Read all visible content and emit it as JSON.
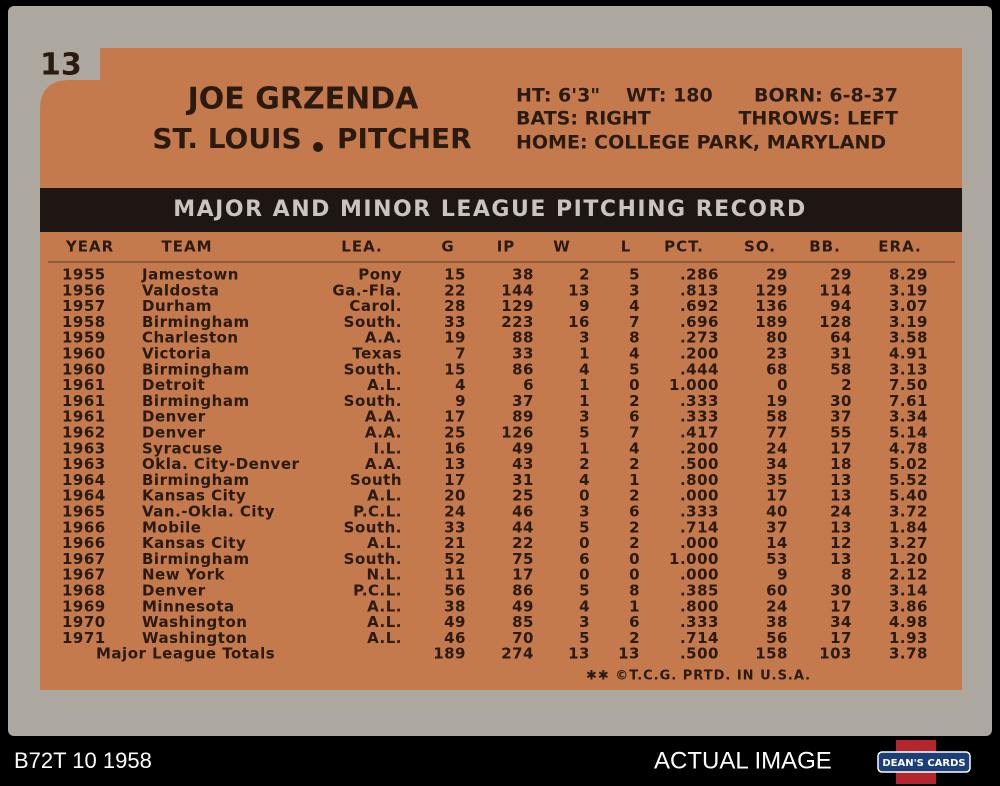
{
  "card_number": "13",
  "player": {
    "name": "JOE GRZENDA",
    "team": "ST. LOUIS",
    "position": "PITCHER"
  },
  "bio": {
    "height": "HT: 6'3\"",
    "weight": "WT: 180",
    "born": "BORN: 6-8-37",
    "bats": "BATS: RIGHT",
    "throws": "THROWS: LEFT",
    "home": "HOME: COLLEGE PARK, MARYLAND"
  },
  "table": {
    "title": "MAJOR AND MINOR LEAGUE PITCHING RECORD",
    "headers": [
      "YEAR",
      "TEAM",
      "LEA.",
      "G",
      "IP",
      "W",
      "L",
      "PCT.",
      "SO.",
      "BB.",
      "ERA."
    ],
    "rows": [
      [
        "1955",
        "Jamestown",
        "Pony",
        "15",
        "38",
        "2",
        "5",
        ".286",
        "29",
        "29",
        "8.29"
      ],
      [
        "1956",
        "Valdosta",
        "Ga.-Fla.",
        "22",
        "144",
        "13",
        "3",
        ".813",
        "129",
        "114",
        "3.19"
      ],
      [
        "1957",
        "Durham",
        "Carol.",
        "28",
        "129",
        "9",
        "4",
        ".692",
        "136",
        "94",
        "3.07"
      ],
      [
        "1958",
        "Birmingham",
        "South.",
        "33",
        "223",
        "16",
        "7",
        ".696",
        "189",
        "128",
        "3.19"
      ],
      [
        "1959",
        "Charleston",
        "A.A.",
        "19",
        "88",
        "3",
        "8",
        ".273",
        "80",
        "64",
        "3.58"
      ],
      [
        "1960",
        "Victoria",
        "Texas",
        "7",
        "33",
        "1",
        "4",
        ".200",
        "23",
        "31",
        "4.91"
      ],
      [
        "1960",
        "Birmingham",
        "South.",
        "15",
        "86",
        "4",
        "5",
        ".444",
        "68",
        "58",
        "3.13"
      ],
      [
        "1961",
        "Detroit",
        "A.L.",
        "4",
        "6",
        "1",
        "0",
        "1.000",
        "0",
        "2",
        "7.50"
      ],
      [
        "1961",
        "Birmingham",
        "South.",
        "9",
        "37",
        "1",
        "2",
        ".333",
        "19",
        "30",
        "7.61"
      ],
      [
        "1961",
        "Denver",
        "A.A.",
        "17",
        "89",
        "3",
        "6",
        ".333",
        "58",
        "37",
        "3.34"
      ],
      [
        "1962",
        "Denver",
        "A.A.",
        "25",
        "126",
        "5",
        "7",
        ".417",
        "77",
        "55",
        "5.14"
      ],
      [
        "1963",
        "Syracuse",
        "I.L.",
        "16",
        "49",
        "1",
        "4",
        ".200",
        "24",
        "17",
        "4.78"
      ],
      [
        "1963",
        "Okla. City-Denver",
        "A.A.",
        "13",
        "43",
        "2",
        "2",
        ".500",
        "34",
        "18",
        "5.02"
      ],
      [
        "1964",
        "Birmingham",
        "South",
        "17",
        "31",
        "4",
        "1",
        ".800",
        "35",
        "13",
        "5.52"
      ],
      [
        "1964",
        "Kansas City",
        "A.L.",
        "20",
        "25",
        "0",
        "2",
        ".000",
        "17",
        "13",
        "5.40"
      ],
      [
        "1965",
        "Van.-Okla. City",
        "P.C.L.",
        "24",
        "46",
        "3",
        "6",
        ".333",
        "40",
        "24",
        "3.72"
      ],
      [
        "1966",
        "Mobile",
        "South.",
        "33",
        "44",
        "5",
        "2",
        ".714",
        "37",
        "13",
        "1.84"
      ],
      [
        "1966",
        "Kansas City",
        "A.L.",
        "21",
        "22",
        "0",
        "2",
        ".000",
        "14",
        "12",
        "3.27"
      ],
      [
        "1967",
        "Birmingham",
        "South.",
        "52",
        "75",
        "6",
        "0",
        "1.000",
        "53",
        "13",
        "1.20"
      ],
      [
        "1967",
        "New York",
        "N.L.",
        "11",
        "17",
        "0",
        "0",
        ".000",
        "9",
        "8",
        "2.12"
      ],
      [
        "1968",
        "Denver",
        "P.C.L.",
        "56",
        "86",
        "5",
        "8",
        ".385",
        "60",
        "30",
        "3.14"
      ],
      [
        "1969",
        "Minnesota",
        "A.L.",
        "38",
        "49",
        "4",
        "1",
        ".800",
        "24",
        "17",
        "3.86"
      ],
      [
        "1970",
        "Washington",
        "A.L.",
        "49",
        "85",
        "3",
        "6",
        ".333",
        "38",
        "34",
        "4.98"
      ],
      [
        "1971",
        "Washington",
        "A.L.",
        "46",
        "70",
        "5",
        "2",
        ".714",
        "56",
        "17",
        "1.93"
      ]
    ],
    "totals": [
      "Major League Totals",
      "189",
      "274",
      "13",
      "13",
      ".500",
      "158",
      "103",
      "3.78"
    ]
  },
  "footer": "✱✱ ©T.C.G. PRTD. IN U.S.A.",
  "caption": {
    "left": "B72T 10 1958",
    "right": "ACTUAL IMAGE",
    "logo": "DEAN'S CARDS"
  }
}
